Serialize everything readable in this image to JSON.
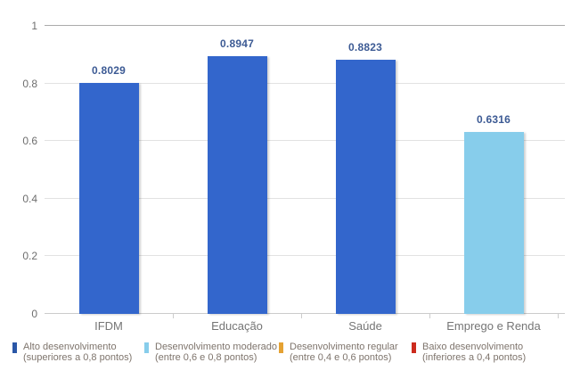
{
  "chart_data": {
    "type": "bar",
    "categories": [
      "IFDM",
      "Educação",
      "Saúde",
      "Emprego e Renda"
    ],
    "values": [
      0.8029,
      0.8947,
      0.8823,
      0.6316
    ],
    "value_labels": [
      "0.8029",
      "0.8947",
      "0.8823",
      "0.6316"
    ],
    "bar_colors": [
      "#3366cc",
      "#3366cc",
      "#3366cc",
      "#87cdeb"
    ],
    "annotation_color": "#3c5a94",
    "title": "",
    "xlabel": "",
    "ylabel": "",
    "ylim": [
      0,
      1
    ],
    "yticks": [
      0,
      0.2,
      0.4,
      0.6,
      0.8,
      1
    ],
    "ytick_labels": [
      "0",
      "0.2",
      "0.4",
      "0.6",
      "0.8",
      "1"
    ],
    "grid": true,
    "legend_position": "bottom",
    "legend": [
      {
        "label_line1": "Alto desenvolvimento",
        "label_line2": "(superiores a 0,8 pontos)",
        "color": "#2a57a7"
      },
      {
        "label_line1": "Desenvolvimento moderado",
        "label_line2": "(entre 0,6 e 0,8 pontos)",
        "color": "#87cdeb"
      },
      {
        "label_line1": "Desenvolvimento regular",
        "label_line2": "(entre 0,4 e 0,6 pontos)",
        "color": "#e5a233"
      },
      {
        "label_line1": "Baixo desenvolvimento",
        "label_line2": "(inferiores a 0,4 pontos)",
        "color": "#cc2b1d"
      }
    ]
  }
}
